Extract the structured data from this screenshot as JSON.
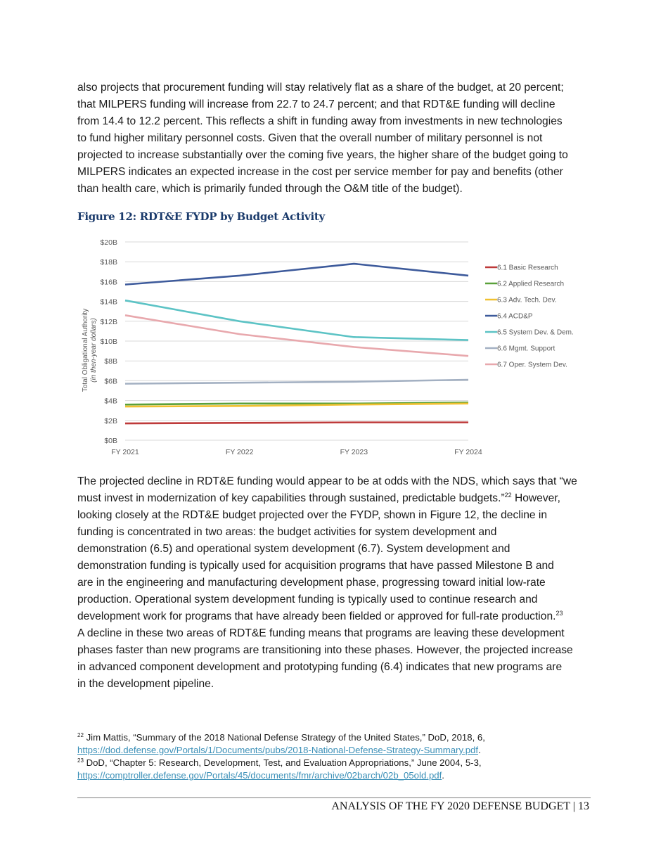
{
  "paragraph1": [
    "also projects that procurement funding will stay relatively flat as a share of the budget, at 20 percent;",
    "that MILPERS funding will increase from 22.7 to 24.7 percent; and that RDT&E funding will decline",
    "from 14.4 to 12.2 percent. This reflects a shift in funding away from investments in new technologies",
    "to fund higher military personnel costs. Given that the overall number of military personnel is not",
    "projected to increase substantially over the coming five years, the higher share of the budget going to",
    "MILPERS indicates an expected increase in the cost per service member for pay and benefits (other",
    "than health care, which is primarily funded through the O&M title of the budget)."
  ],
  "figure_title": "Figure 12: RDT&E FYDP by Budget Activity",
  "chart_data": {
    "type": "line",
    "title": "",
    "ylabel": "Total Obligational Authority",
    "ylabel_sub": "(in then-year dollars)",
    "xlabel": "",
    "categories": [
      "FY 2021",
      "FY 2022",
      "FY 2023",
      "FY 2024"
    ],
    "ylim": [
      0,
      20
    ],
    "y_ticks": [
      {
        "value": 0,
        "label": "$0B"
      },
      {
        "value": 2,
        "label": "$2B"
      },
      {
        "value": 4,
        "label": "$4B"
      },
      {
        "value": 6,
        "label": "$6B"
      },
      {
        "value": 8,
        "label": "$8B"
      },
      {
        "value": 10,
        "label": "$10B"
      },
      {
        "value": 12,
        "label": "$12B"
      },
      {
        "value": 14,
        "label": "$14B"
      },
      {
        "value": 16,
        "label": "$16B"
      },
      {
        "value": 18,
        "label": "$18B"
      },
      {
        "value": 20,
        "label": "$20B"
      }
    ],
    "grid": true,
    "legend_position": "right",
    "series": [
      {
        "name": "6.1 Basic Research",
        "color": "#be3a3a",
        "values": [
          1.7,
          1.75,
          1.8,
          1.8
        ]
      },
      {
        "name": "6.2 Applied Research",
        "color": "#5aa13a",
        "values": [
          3.6,
          3.7,
          3.7,
          3.8
        ]
      },
      {
        "name": "6.3 Adv. Tech. Dev.",
        "color": "#f0c030",
        "values": [
          3.4,
          3.45,
          3.6,
          3.7
        ]
      },
      {
        "name": "6.4 ACD&P",
        "color": "#3d5a9b",
        "values": [
          15.7,
          16.6,
          17.8,
          16.6
        ]
      },
      {
        "name": "6.5 System Dev. & Dem.",
        "color": "#5cc3c5",
        "values": [
          14.1,
          12.0,
          10.4,
          10.1
        ]
      },
      {
        "name": "6.6 Mgmt. Support",
        "color": "#a3b0c2",
        "values": [
          5.7,
          5.8,
          5.9,
          6.1
        ]
      },
      {
        "name": "6.7 Oper. System Dev.",
        "color": "#e8a8ad",
        "values": [
          12.6,
          10.7,
          9.4,
          8.5
        ]
      }
    ]
  },
  "paragraph2": [
    [
      {
        "t": "The projected decline in RDT&E funding would appear to be at odds with the NDS, which says that “we"
      }
    ],
    [
      {
        "t": "must invest in modernization of key capabilities through sustained, predictable budgets.”"
      },
      {
        "t": "22",
        "sup": true
      },
      {
        "t": " However,"
      }
    ],
    [
      {
        "t": "looking closely at the RDT&E budget projected over the FYDP, shown in Figure 12, the decline in"
      }
    ],
    [
      {
        "t": "funding is concentrated in two areas: the budget activities for system development and"
      }
    ],
    [
      {
        "t": "demonstration (6.5) and operational system development (6.7). System development and"
      }
    ],
    [
      {
        "t": "demonstration funding is typically used for acquisition programs that have passed Milestone B and"
      }
    ],
    [
      {
        "t": "are in the engineering and manufacturing development phase, progressing toward initial low-rate"
      }
    ],
    [
      {
        "t": "production. Operational system development funding is typically used to continue research and"
      }
    ],
    [
      {
        "t": "development work for programs that have already been fielded or approved for full-rate production."
      },
      {
        "t": "23",
        "sup": true
      }
    ],
    [
      {
        "t": "A decline in these two areas of RDT&E funding means that programs are leaving these development"
      }
    ],
    [
      {
        "t": "phases faster than new programs are transitioning into these phases. However, the projected increase"
      }
    ],
    [
      {
        "t": "in advanced component development and prototyping funding (6.4) indicates that new programs are"
      }
    ],
    [
      {
        "t": "in the development pipeline."
      }
    ]
  ],
  "footnotes": [
    {
      "number": "22",
      "text": " Jim Mattis, “Summary of the 2018 National Defense Strategy of the United States,” DoD, 2018, 6,",
      "link": "https://dod.defense.gov/Portals/1/Documents/pubs/2018-National-Defense-Strategy-Summary.pdf"
    },
    {
      "number": "23",
      "text": " DoD, “Chapter 5: Research, Development, Test, and Evaluation Appropriations,” June 2004, 5-3,",
      "link": "https://comptroller.defense.gov/Portals/45/documents/fmr/archive/02barch/02b_05old.pdf"
    }
  ],
  "footer": "ANALYSIS OF THE FY 2020 DEFENSE BUDGET | 13"
}
